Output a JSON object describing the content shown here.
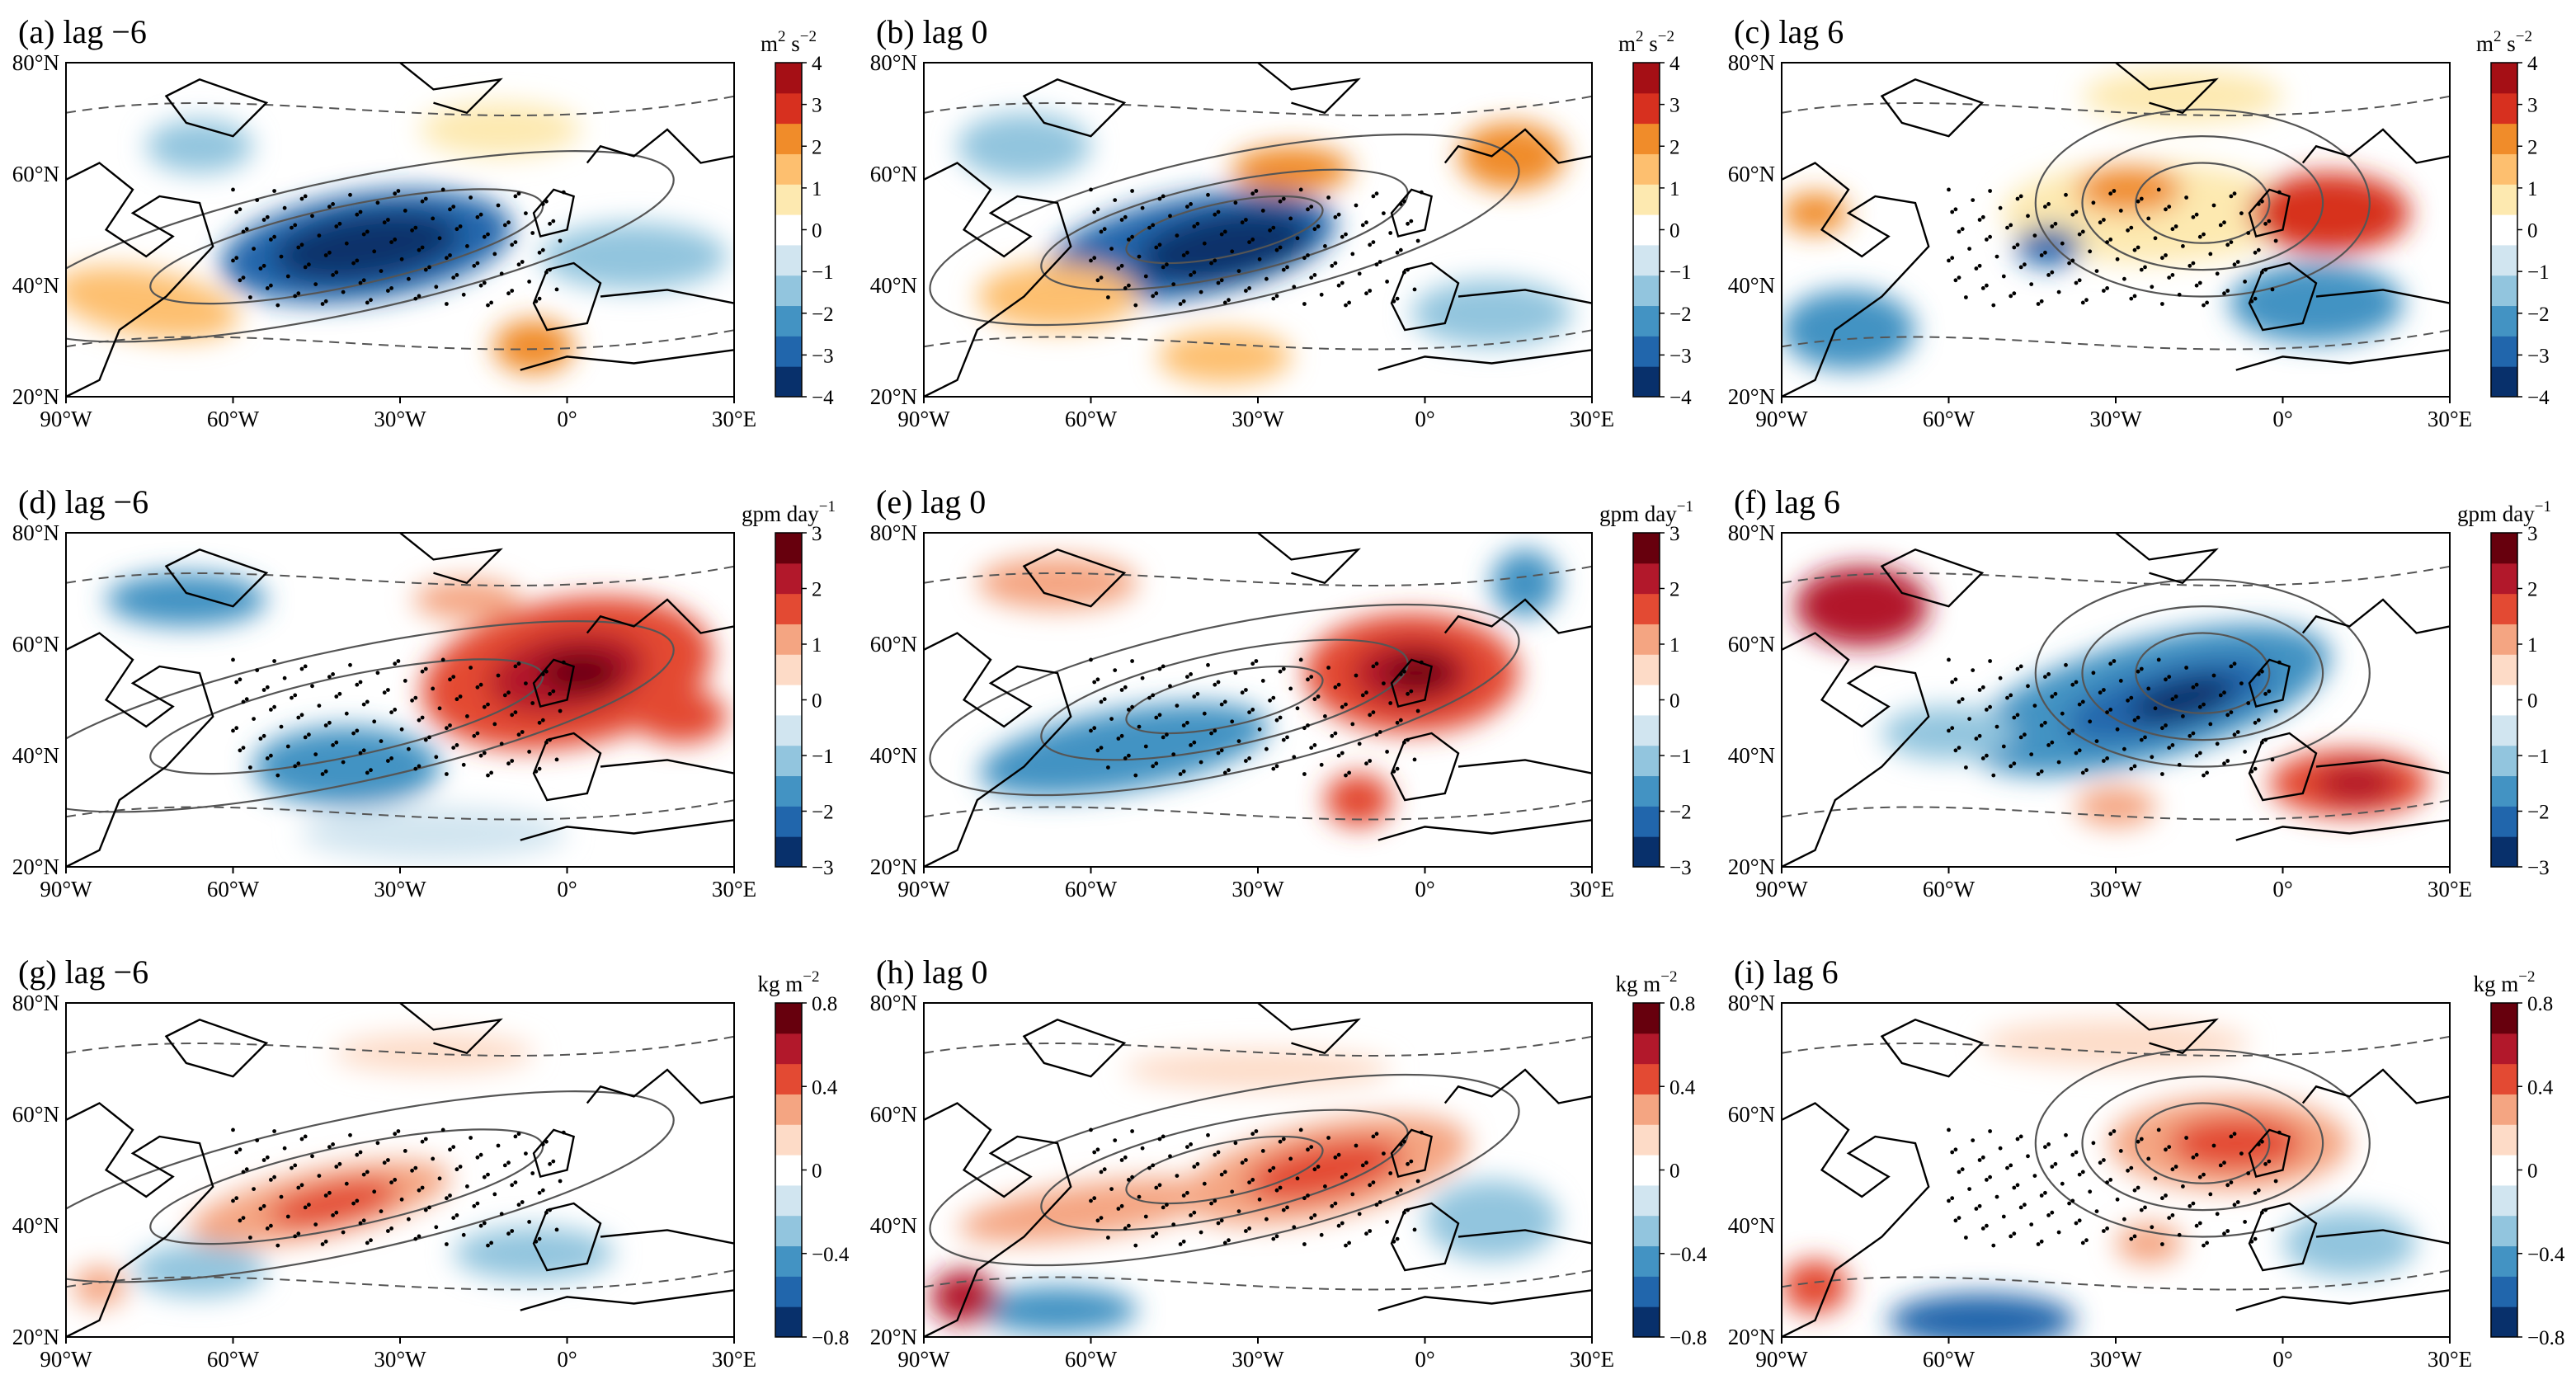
{
  "figure": {
    "lat_ticks": [
      "80°N",
      "60°N",
      "40°N",
      "20°N"
    ],
    "lon_ticks": [
      "90°W",
      "60°W",
      "30°W",
      "0°",
      "30°E"
    ]
  },
  "rows": [
    {
      "unit_main": "m",
      "unit_sup1": "2",
      "unit_mid": " s",
      "unit_sup2": "−2",
      "colorbar_ticks": [
        "4",
        "3",
        "2",
        "1",
        "0",
        "−1",
        "−2",
        "−3",
        "−4"
      ],
      "colors": [
        "#08306b",
        "#2166ac",
        "#4393c3",
        "#92c5de",
        "#d1e5f0",
        "#ffffff",
        "#fde9b0",
        "#fdbf6f",
        "#f08c2a",
        "#d7301f",
        "#a50f15"
      ],
      "panels": [
        {
          "label": "(a) lag −6"
        },
        {
          "label": "(b) lag 0"
        },
        {
          "label": "(c) lag 6"
        }
      ]
    },
    {
      "unit_main": "gpm day",
      "unit_sup1": "",
      "unit_mid": "",
      "unit_sup2": "−1",
      "colorbar_ticks": [
        "3",
        "2",
        "1",
        "0",
        "−1",
        "−2",
        "−3"
      ],
      "colors": [
        "#08306b",
        "#2166ac",
        "#4393c3",
        "#92c5de",
        "#d1e5f0",
        "#ffffff",
        "#fddbc7",
        "#f4a582",
        "#e34a33",
        "#b2182b",
        "#67000d"
      ],
      "panels": [
        {
          "label": "(d) lag −6"
        },
        {
          "label": "(e) lag 0"
        },
        {
          "label": "(f) lag 6"
        }
      ]
    },
    {
      "unit_main": "kg m",
      "unit_sup1": "",
      "unit_mid": "",
      "unit_sup2": "−2",
      "colorbar_ticks": [
        "0.8",
        "0.4",
        "0",
        "−0.4",
        "−0.8"
      ],
      "colors": [
        "#08306b",
        "#2166ac",
        "#4393c3",
        "#92c5de",
        "#d1e5f0",
        "#ffffff",
        "#fddbc7",
        "#f4a582",
        "#e34a33",
        "#b2182b",
        "#67000d"
      ],
      "panels": [
        {
          "label": "(g) lag −6"
        },
        {
          "label": "(h) lag 0"
        },
        {
          "label": "(i) lag 6"
        }
      ]
    }
  ]
}
